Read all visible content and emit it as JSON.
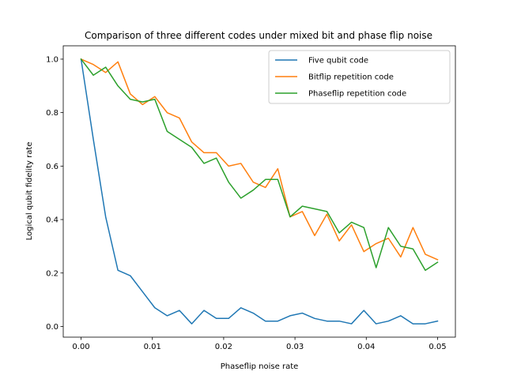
{
  "chart_data": {
    "type": "line",
    "title": "Comparison of three different codes under mixed bit and phase flip noise",
    "xlabel": "Phaseflip noise rate",
    "ylabel": "Logical qubit fidelity rate",
    "xlim": [
      -0.0025,
      0.0525
    ],
    "ylim": [
      -0.04,
      1.05
    ],
    "xticks": [
      0.0,
      0.01,
      0.02,
      0.03,
      0.04,
      0.05
    ],
    "xtick_labels": [
      "0.00",
      "0.01",
      "0.02",
      "0.03",
      "0.04",
      "0.05"
    ],
    "yticks": [
      0.0,
      0.2,
      0.4,
      0.6,
      0.8,
      1.0
    ],
    "ytick_labels": [
      "0.0",
      "0.2",
      "0.4",
      "0.6",
      "0.8",
      "1.0"
    ],
    "grid": false,
    "legend_position": "top-right",
    "x": [
      0.0,
      0.00172,
      0.00345,
      0.00517,
      0.0069,
      0.00862,
      0.01034,
      0.01207,
      0.01379,
      0.01552,
      0.01724,
      0.01897,
      0.02069,
      0.02241,
      0.02414,
      0.02586,
      0.02759,
      0.02931,
      0.03103,
      0.03276,
      0.03448,
      0.03621,
      0.03793,
      0.03966,
      0.04138,
      0.0431,
      0.04483,
      0.04655,
      0.04828,
      0.05
    ],
    "series": [
      {
        "name": "Five qubit code",
        "color": "#1f77b4",
        "values": [
          1.0,
          0.7,
          0.41,
          0.21,
          0.19,
          0.13,
          0.07,
          0.04,
          0.06,
          0.01,
          0.06,
          0.03,
          0.03,
          0.07,
          0.05,
          0.02,
          0.02,
          0.04,
          0.05,
          0.03,
          0.02,
          0.02,
          0.01,
          0.06,
          0.01,
          0.02,
          0.04,
          0.01,
          0.01,
          0.02
        ]
      },
      {
        "name": "Bitflip repetition code",
        "color": "#ff7f0e",
        "values": [
          1.0,
          0.98,
          0.95,
          0.99,
          0.87,
          0.83,
          0.86,
          0.8,
          0.78,
          0.69,
          0.65,
          0.65,
          0.6,
          0.61,
          0.54,
          0.52,
          0.59,
          0.41,
          0.43,
          0.34,
          0.42,
          0.32,
          0.38,
          0.28,
          0.31,
          0.33,
          0.26,
          0.37,
          0.27,
          0.25
        ]
      },
      {
        "name": "Phaseflip repetition code",
        "color": "#2ca02c",
        "values": [
          1.0,
          0.94,
          0.97,
          0.9,
          0.85,
          0.84,
          0.85,
          0.73,
          0.7,
          0.67,
          0.61,
          0.63,
          0.54,
          0.48,
          0.51,
          0.55,
          0.55,
          0.41,
          0.45,
          0.44,
          0.43,
          0.35,
          0.39,
          0.37,
          0.22,
          0.37,
          0.3,
          0.29,
          0.21,
          0.24
        ]
      }
    ]
  }
}
